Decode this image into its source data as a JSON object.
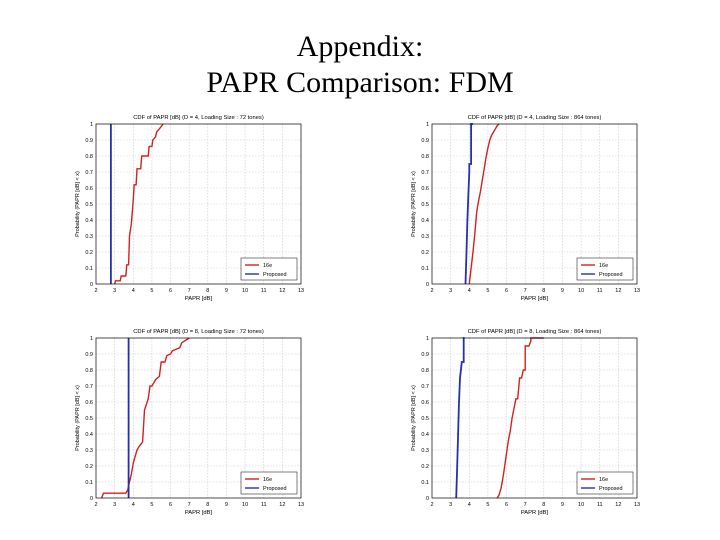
{
  "slide": {
    "title_line1": "Appendix:",
    "title_line2": "PAPR Comparison: FDM"
  },
  "colors": {
    "series_16e": "#d42020",
    "series_proposed": "#2430b0",
    "grid": "#c8c8c8"
  },
  "chart_data": [
    {
      "type": "line",
      "title": "CDF of PAPR [dB] (D = 4, Loading Size : 72 tones)",
      "xlabel": "PAPR [dB]",
      "ylabel": "Probability (PAPR [dB] < x)",
      "xlim": [
        2,
        13
      ],
      "ylim": [
        0,
        1
      ],
      "xticks": [
        "2",
        "3",
        "4",
        "5",
        "6",
        "7",
        "8",
        "9",
        "10",
        "11",
        "12",
        "13"
      ],
      "yticks": [
        "0",
        "0.1",
        "0.2",
        "0.3",
        "0.4",
        "0.5",
        "0.6",
        "0.7",
        "0.8",
        "0.9",
        "1"
      ],
      "grid": true,
      "legend": "bottom-right",
      "series": [
        {
          "name": "16e",
          "color": "#d42020",
          "x": [
            3.0,
            3.05,
            3.3,
            3.35,
            3.6,
            3.65,
            3.75,
            3.8,
            3.9,
            3.95,
            4.0,
            4.05,
            4.15,
            4.2,
            4.4,
            4.45,
            4.8,
            4.85,
            5.0,
            5.05,
            5.2,
            5.25,
            5.4,
            5.6
          ],
          "y": [
            0,
            0.02,
            0.02,
            0.05,
            0.05,
            0.12,
            0.12,
            0.3,
            0.38,
            0.45,
            0.53,
            0.62,
            0.62,
            0.72,
            0.72,
            0.8,
            0.8,
            0.86,
            0.86,
            0.9,
            0.92,
            0.95,
            0.97,
            1.0
          ]
        },
        {
          "name": "Proposed",
          "color": "#2430b0",
          "x": [
            2.8,
            2.8
          ],
          "y": [
            0,
            1
          ]
        }
      ]
    },
    {
      "type": "line",
      "title": "CDF of PAPR [dB] (D = 4, Loading Size : 864 tones)",
      "xlabel": "PAPR [dB]",
      "ylabel": "Probability (PAPR [dB] < x)",
      "xlim": [
        2,
        13
      ],
      "ylim": [
        0,
        1
      ],
      "xticks": [
        "2",
        "3",
        "4",
        "5",
        "6",
        "7",
        "8",
        "9",
        "10",
        "11",
        "12",
        "13"
      ],
      "yticks": [
        "0",
        "0.1",
        "0.2",
        "0.3",
        "0.4",
        "0.5",
        "0.6",
        "0.7",
        "0.8",
        "0.9",
        "1"
      ],
      "grid": true,
      "legend": "bottom-right",
      "series": [
        {
          "name": "16e",
          "color": "#d42020",
          "x": [
            4.0,
            4.1,
            4.2,
            4.3,
            4.4,
            4.5,
            4.6,
            4.7,
            4.8,
            4.9,
            5.0,
            5.1,
            5.2,
            5.3,
            5.4,
            5.5,
            5.6
          ],
          "y": [
            0,
            0.1,
            0.2,
            0.32,
            0.45,
            0.52,
            0.58,
            0.65,
            0.72,
            0.79,
            0.85,
            0.9,
            0.93,
            0.95,
            0.97,
            0.99,
            1.0
          ]
        },
        {
          "name": "Proposed",
          "color": "#2430b0",
          "x": [
            3.8,
            3.85,
            3.9,
            3.95,
            4.0,
            4.0,
            4.05,
            4.1,
            4.1,
            4.15,
            4.2
          ],
          "y": [
            0,
            0.2,
            0.4,
            0.55,
            0.7,
            0.75,
            0.75,
            0.75,
            1.0,
            1.0,
            1.0
          ]
        }
      ]
    },
    {
      "type": "line",
      "title": "CDF of PAPR [dB] (D = 8, Loading Size : 72 tones)",
      "xlabel": "PAPR [dB]",
      "ylabel": "Probability (PAPR [dB] < x)",
      "xlim": [
        2,
        13
      ],
      "ylim": [
        0,
        1
      ],
      "xticks": [
        "2",
        "3",
        "4",
        "5",
        "6",
        "7",
        "8",
        "9",
        "10",
        "11",
        "12",
        "13"
      ],
      "yticks": [
        "0",
        "0.1",
        "0.2",
        "0.3",
        "0.4",
        "0.5",
        "0.6",
        "0.7",
        "0.8",
        "0.9",
        "1"
      ],
      "grid": true,
      "legend": "bottom-right",
      "series": [
        {
          "name": "16e",
          "color": "#d42020",
          "x": [
            2.3,
            2.4,
            3.6,
            3.7,
            3.8,
            3.9,
            4.0,
            4.2,
            4.3,
            4.5,
            4.6,
            4.8,
            4.9,
            5.0,
            5.1,
            5.2,
            5.4,
            5.5,
            5.7,
            5.8,
            6.0,
            6.1,
            6.5,
            6.6,
            7.0
          ],
          "y": [
            0,
            0.03,
            0.03,
            0.05,
            0.1,
            0.15,
            0.22,
            0.3,
            0.32,
            0.35,
            0.55,
            0.62,
            0.7,
            0.7,
            0.72,
            0.74,
            0.76,
            0.85,
            0.85,
            0.89,
            0.9,
            0.92,
            0.94,
            0.97,
            1.0
          ]
        },
        {
          "name": "Proposed",
          "color": "#2430b0",
          "x": [
            3.75,
            3.75
          ],
          "y": [
            0,
            1
          ]
        }
      ]
    },
    {
      "type": "line",
      "title": "CDF of PAPR [dB] (D = 8, Loading Size : 864 tones)",
      "xlabel": "PAPR [dB]",
      "ylabel": "Probability (PAPR [dB] < x)",
      "xlim": [
        2,
        13
      ],
      "ylim": [
        0,
        1
      ],
      "xticks": [
        "2",
        "3",
        "4",
        "5",
        "6",
        "7",
        "8",
        "9",
        "10",
        "11",
        "12",
        "13"
      ],
      "yticks": [
        "0",
        "0.1",
        "0.2",
        "0.3",
        "0.4",
        "0.5",
        "0.6",
        "0.7",
        "0.8",
        "0.9",
        "1"
      ],
      "grid": true,
      "legend": "bottom-right",
      "series": [
        {
          "name": "16e",
          "color": "#d42020",
          "x": [
            5.5,
            5.6,
            5.7,
            5.8,
            5.9,
            6.0,
            6.1,
            6.2,
            6.3,
            6.4,
            6.5,
            6.6,
            6.7,
            6.8,
            6.9,
            7.0,
            7.0,
            7.2,
            7.3,
            7.3,
            8.0
          ],
          "y": [
            0,
            0.02,
            0.06,
            0.12,
            0.2,
            0.28,
            0.36,
            0.42,
            0.5,
            0.56,
            0.62,
            0.62,
            0.75,
            0.75,
            0.8,
            0.8,
            0.95,
            0.95,
            0.98,
            1.0,
            1.0
          ]
        },
        {
          "name": "Proposed",
          "color": "#2430b0",
          "x": [
            3.3,
            3.35,
            3.4,
            3.45,
            3.5,
            3.55,
            3.6,
            3.6,
            3.65,
            3.7,
            3.7,
            3.75
          ],
          "y": [
            0,
            0.2,
            0.4,
            0.6,
            0.75,
            0.8,
            0.85,
            0.85,
            0.85,
            0.85,
            1.0,
            1.0
          ]
        }
      ]
    }
  ]
}
